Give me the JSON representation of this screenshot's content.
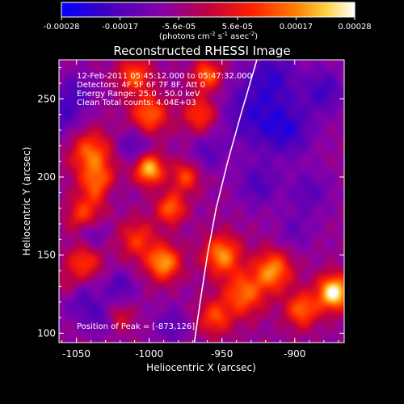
{
  "chart_data": {
    "type": "heatmap",
    "title": "Reconstructed RHESSI Image",
    "xlabel": "Heliocentric X (arcsec)",
    "ylabel": "Heliocentric Y (arcsec)",
    "xlim": [
      -1062,
      -866
    ],
    "ylim": [
      94,
      275
    ],
    "x_ticks": [
      {
        "value": -1050,
        "label": "-1050"
      },
      {
        "value": -1000,
        "label": "-1000"
      },
      {
        "value": -950,
        "label": "-950"
      },
      {
        "value": -900,
        "label": "-900"
      }
    ],
    "y_ticks": [
      {
        "value": 100,
        "label": "100"
      },
      {
        "value": 150,
        "label": "150"
      },
      {
        "value": 200,
        "label": "200"
      },
      {
        "value": 250,
        "label": "250"
      }
    ],
    "colorbar": {
      "range": [
        -0.00028,
        0.00028
      ],
      "tick_labels": [
        "-0.00028",
        "-0.00017",
        "-5.6e-05",
        "5.6e-05",
        "0.00017",
        "0.00028"
      ],
      "unit_label": "(photons cm",
      "unit_exp1": "-2",
      "unit_mid": " s",
      "unit_exp2": "-1",
      "unit_mid2": " asec",
      "unit_exp3": "-2",
      "unit_end": ")",
      "colors": [
        "#0000ff",
        "#4000c0",
        "#8800a8",
        "#c00040",
        "#ff2000",
        "#ff8000",
        "#ffd040",
        "#ffffff"
      ]
    },
    "annotations": [
      "12-Feb-2011 05:45:12.000 to 05:47:32.000",
      "Detectors: 4F 5F 6F 7F 8F, Att 0",
      "Energy Range: 25.0 - 50.0 keV",
      "Clean     Total counts: 4.04E+03"
    ],
    "peak_label": "Position of Peak = [-873,126]",
    "limb_curve": [
      [
        -969,
        94
      ],
      [
        -965,
        120
      ],
      [
        -960,
        150
      ],
      [
        -954,
        180
      ],
      [
        -946,
        210
      ],
      [
        -937,
        240
      ],
      [
        -926,
        275
      ]
    ],
    "sources": [
      {
        "x": -1040,
        "y": 215,
        "amp": 0.6,
        "sigma": 10
      },
      {
        "x": -1035,
        "y": 195,
        "amp": 0.55,
        "sigma": 9
      },
      {
        "x": -1045,
        "y": 175,
        "amp": 0.5,
        "sigma": 8
      },
      {
        "x": -1045,
        "y": 145,
        "amp": 0.5,
        "sigma": 8
      },
      {
        "x": -1010,
        "y": 265,
        "amp": 0.55,
        "sigma": 8
      },
      {
        "x": -1000,
        "y": 240,
        "amp": 0.6,
        "sigma": 9
      },
      {
        "x": -1000,
        "y": 205,
        "amp": 0.85,
        "sigma": 7
      },
      {
        "x": -985,
        "y": 180,
        "amp": 0.6,
        "sigma": 7
      },
      {
        "x": -1008,
        "y": 160,
        "amp": 0.45,
        "sigma": 9
      },
      {
        "x": -990,
        "y": 145,
        "amp": 0.75,
        "sigma": 8
      },
      {
        "x": -975,
        "y": 200,
        "amp": 0.5,
        "sigma": 7
      },
      {
        "x": -965,
        "y": 240,
        "amp": 0.5,
        "sigma": 8
      },
      {
        "x": -960,
        "y": 265,
        "amp": 0.6,
        "sigma": 7
      },
      {
        "x": -1055,
        "y": 130,
        "amp": 0.35,
        "sigma": 7
      },
      {
        "x": -950,
        "y": 150,
        "amp": 0.7,
        "sigma": 9
      },
      {
        "x": -935,
        "y": 125,
        "amp": 0.6,
        "sigma": 10
      },
      {
        "x": -915,
        "y": 140,
        "amp": 0.7,
        "sigma": 9
      },
      {
        "x": -895,
        "y": 115,
        "amp": 0.6,
        "sigma": 8
      },
      {
        "x": -873,
        "y": 126,
        "amp": 1.0,
        "sigma": 8
      },
      {
        "x": -955,
        "y": 110,
        "amp": 0.5,
        "sigma": 8
      },
      {
        "x": -1020,
        "y": 110,
        "amp": 0.3,
        "sigma": 6
      },
      {
        "x": -1060,
        "y": 240,
        "amp": -0.3,
        "sigma": 10
      },
      {
        "x": -1050,
        "y": 255,
        "amp": -0.25,
        "sigma": 8
      },
      {
        "x": -1040,
        "y": 165,
        "amp": -0.3,
        "sigma": 7
      },
      {
        "x": -1050,
        "y": 125,
        "amp": -0.35,
        "sigma": 9
      },
      {
        "x": -1035,
        "y": 110,
        "amp": -0.25,
        "sigma": 8
      },
      {
        "x": -1020,
        "y": 130,
        "amp": -0.3,
        "sigma": 7
      },
      {
        "x": -985,
        "y": 105,
        "amp": -0.25,
        "sigma": 8
      },
      {
        "x": -1010,
        "y": 220,
        "amp": -0.3,
        "sigma": 8
      },
      {
        "x": -1025,
        "y": 190,
        "amp": -0.2,
        "sigma": 6
      },
      {
        "x": -930,
        "y": 240,
        "amp": -0.35,
        "sigma": 15
      },
      {
        "x": -905,
        "y": 230,
        "amp": -0.4,
        "sigma": 12
      },
      {
        "x": -915,
        "y": 265,
        "amp": -0.35,
        "sigma": 12
      },
      {
        "x": -880,
        "y": 255,
        "amp": -0.35,
        "sigma": 10
      },
      {
        "x": -925,
        "y": 195,
        "amp": -0.3,
        "sigma": 10
      },
      {
        "x": -890,
        "y": 190,
        "amp": -0.25,
        "sigma": 10
      },
      {
        "x": -960,
        "y": 215,
        "amp": -0.25,
        "sigma": 8
      },
      {
        "x": -900,
        "y": 165,
        "amp": -0.2,
        "sigma": 8
      }
    ]
  }
}
